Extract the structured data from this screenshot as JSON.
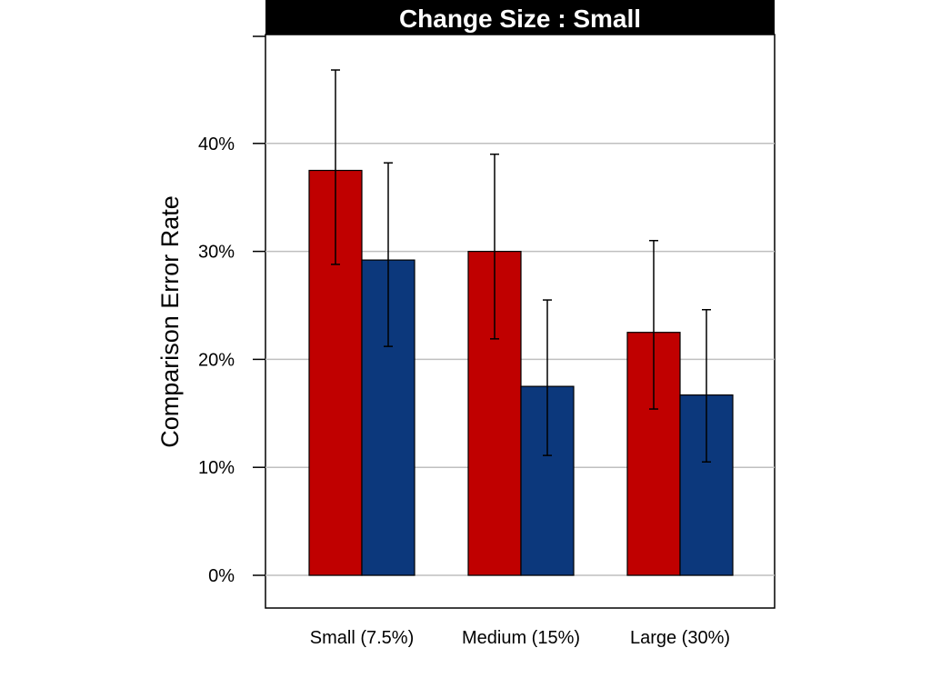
{
  "chart_data": {
    "type": "bar",
    "title": "Change Size : Small",
    "xlabel": "",
    "ylabel": "Comparison Error Rate",
    "categories": [
      "Small (7.5%)",
      "Medium (15%)",
      "Large (30%)"
    ],
    "ylim": [
      -3,
      50
    ],
    "yticks": [
      0,
      10,
      20,
      30,
      40
    ],
    "ytick_labels": [
      "0%",
      "10%",
      "20%",
      "30%",
      "40%"
    ],
    "grid": true,
    "legend": "none",
    "series": [
      {
        "color": "#c00000",
        "values": [
          37.5,
          30.0,
          22.5
        ],
        "error_low": [
          28.8,
          21.9,
          15.4
        ],
        "error_high": [
          46.8,
          39.0,
          31.0
        ]
      },
      {
        "color": "#0c387c",
        "values": [
          29.2,
          17.5,
          16.7
        ],
        "error_low": [
          21.2,
          11.1,
          10.5
        ],
        "error_high": [
          38.2,
          25.5,
          24.6
        ]
      }
    ]
  }
}
